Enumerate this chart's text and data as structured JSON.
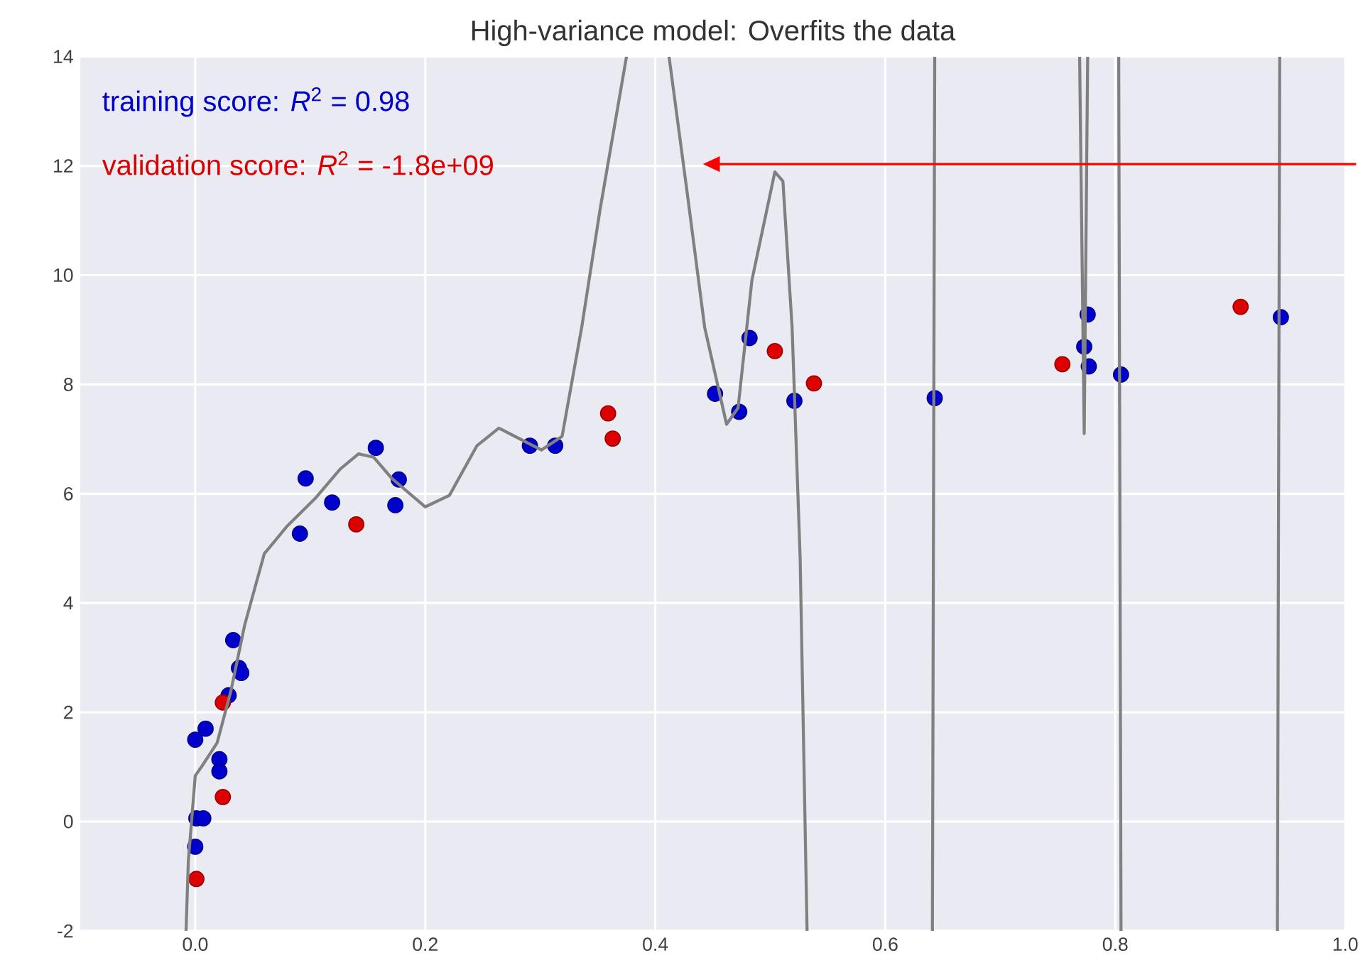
{
  "chart_data": {
    "type": "scatter",
    "title": "High-variance model: Overfits the data",
    "annotations": [
      "training score: *R*$^{2}$ = 0.98",
      "validation score: *R*$^{2}$ = -1.8e+09"
    ],
    "xlim": [
      -0.1,
      1.0
    ],
    "ylim": [
      -2,
      14
    ],
    "xticks": [
      {
        "value": 0,
        "label": "0.0"
      },
      {
        "value": 0.2,
        "label": "0.2"
      },
      {
        "value": 0.4,
        "label": "0.4"
      },
      {
        "value": 0.6,
        "label": "0.6"
      },
      {
        "value": 0.8,
        "label": "0.8"
      },
      {
        "value": 1.0,
        "label": "1.0"
      }
    ],
    "yticks": [
      -2,
      0,
      2,
      4,
      6,
      8,
      10,
      12,
      14
    ],
    "grid": true,
    "marker": "circle",
    "series": [
      {
        "color": "#0000cc",
        "x": [
          0.157,
          0.096,
          0.177,
          0.119,
          0.174,
          0.091,
          0.033,
          0.038,
          0.04,
          0.029,
          0.009,
          0.0,
          0.021,
          0.021,
          0.001,
          0.007,
          0.0,
          0.291,
          0.313,
          0.452,
          0.473,
          0.482,
          0.521,
          0.643,
          0.776,
          0.773,
          0.777,
          0.805,
          0.944
        ],
        "values": [
          6.84,
          6.28,
          6.26,
          5.84,
          5.79,
          5.27,
          3.32,
          2.81,
          2.72,
          2.31,
          1.7,
          1.5,
          1.14,
          0.92,
          0.06,
          0.06,
          -0.46,
          6.88,
          6.88,
          7.83,
          7.5,
          8.85,
          7.7,
          7.75,
          9.28,
          8.69,
          8.33,
          8.18,
          9.23
        ]
      },
      {
        "color": "#dd0000",
        "x": [
          0.14,
          0.024,
          0.024,
          0.001,
          0.359,
          0.363,
          0.504,
          0.538,
          0.754,
          0.909
        ],
        "values": [
          5.44,
          2.18,
          0.45,
          -1.05,
          7.47,
          7.01,
          8.61,
          8.02,
          8.37,
          9.42
        ]
      },
      {
        "type": "line",
        "marker": "none",
        "color": "#808080",
        "x": [
          -0.008,
          -0.006,
          0.0,
          0.006,
          0.019,
          0.031,
          0.043,
          0.06,
          0.08,
          0.105,
          0.126,
          0.142,
          0.155,
          0.171,
          0.2,
          0.221,
          0.245,
          0.264,
          0.278,
          0.301,
          0.319,
          0.336,
          0.352,
          0.375,
          0.39,
          0.412,
          0.427,
          0.443,
          0.462,
          0.472,
          0.484,
          0.504,
          0.511,
          0.519,
          0.526,
          0.532,
          0.6,
          0.641,
          0.643,
          0.7,
          0.769,
          0.773,
          0.776,
          0.79,
          0.803,
          0.805,
          0.9,
          0.941,
          0.943
        ],
        "values": [
          -2,
          -0.72,
          0.84,
          1.02,
          1.44,
          2.39,
          3.6,
          4.9,
          5.41,
          5.93,
          6.45,
          6.73,
          6.67,
          6.28,
          5.76,
          5.97,
          6.88,
          7.2,
          7.05,
          6.8,
          7.05,
          9.04,
          11.2,
          14,
          null,
          14,
          11.63,
          9.04,
          7.27,
          7.57,
          9.9,
          11.89,
          11.72,
          9.04,
          4.81,
          -2,
          null,
          -2,
          14,
          null,
          14,
          7.1,
          14,
          null,
          14,
          -2,
          null,
          -2,
          14
        ]
      }
    ]
  }
}
